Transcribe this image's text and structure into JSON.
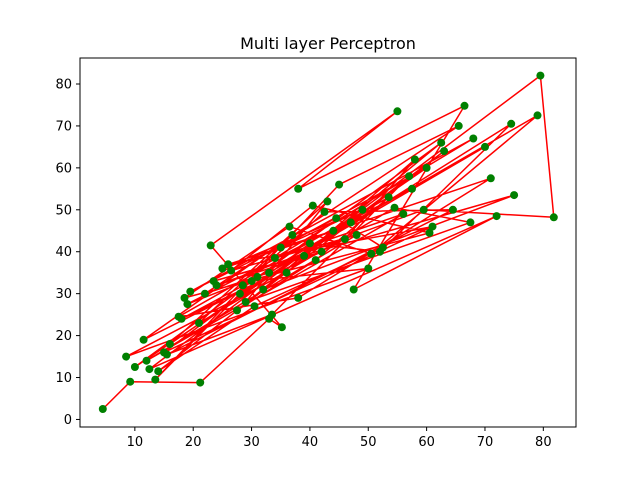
{
  "chart_data": {
    "type": "scatter",
    "title": "Multi layer Perceptron",
    "xlabel": "",
    "ylabel": "",
    "xlim": [
      0.6,
      85.6
    ],
    "ylim": [
      -1.8,
      86.2
    ],
    "xticks": [
      10,
      20,
      30,
      40,
      50,
      60,
      70,
      80
    ],
    "yticks": [
      0,
      10,
      20,
      30,
      40,
      50,
      60,
      70,
      80
    ],
    "grid": false,
    "line_color": "#ff0000",
    "marker_color": "#008000",
    "points": {
      "x": [
        4.5,
        9.2,
        21.2,
        33.0,
        35.2,
        23.0,
        55.0,
        38.0,
        66.5,
        47.5,
        72.0,
        12.5,
        79.5,
        81.8,
        59.5,
        24.0,
        42.0,
        18.0,
        30.0,
        50.0,
        8.5,
        36.0,
        44.0,
        26.0,
        61.0,
        15.0,
        40.0,
        52.0,
        74.5,
        28.0,
        13.5,
        45.0,
        65.5,
        22.0,
        33.0,
        70.0,
        57.5,
        19.0,
        31.0,
        47.0,
        10.0,
        62.5,
        27.5,
        41.0,
        53.5,
        17.5,
        38.0,
        71.0,
        25.0,
        49.0,
        35.0,
        60.0,
        16.0,
        43.0,
        29.0,
        67.5,
        54.5,
        21.0,
        37.0,
        11.5,
        46.0,
        58.0,
        32.0,
        75.0,
        23.5,
        39.0,
        63.0,
        14.0,
        30.5,
        52.5,
        44.5,
        19.5,
        68.0,
        34.0,
        56.0,
        12.0,
        48.0,
        26.5,
        40.5,
        60.5,
        18.5,
        36.5,
        50.5,
        79.0,
        28.5,
        42.5,
        64.5,
        15.5,
        33.5,
        57.0
      ],
      "y": [
        2.5,
        9.0,
        8.8,
        24.0,
        22.0,
        41.5,
        73.5,
        55.0,
        74.8,
        31.0,
        48.5,
        12.0,
        82.0,
        48.2,
        50.0,
        32.0,
        40.0,
        24.0,
        33.0,
        36.0,
        15.0,
        35.0,
        45.0,
        37.0,
        46.0,
        16.0,
        42.0,
        40.0,
        70.5,
        30.0,
        9.5,
        56.0,
        70.0,
        30.0,
        35.0,
        65.0,
        55.0,
        27.5,
        34.0,
        47.0,
        12.5,
        66.0,
        26.0,
        38.0,
        53.0,
        24.5,
        29.0,
        57.5,
        36.0,
        50.0,
        41.0,
        60.0,
        18.0,
        52.0,
        28.0,
        47.0,
        50.5,
        23.0,
        44.0,
        19.0,
        43.0,
        62.0,
        31.0,
        53.5,
        33.0,
        39.0,
        64.0,
        11.5,
        27.0,
        41.0,
        48.0,
        30.5,
        67.0,
        38.5,
        49.0,
        14.0,
        44.0,
        35.5,
        51.0,
        44.5,
        29.0,
        46.0,
        39.5,
        72.5,
        32.0,
        49.5,
        50.0,
        15.5,
        25.0,
        58.0
      ]
    }
  }
}
